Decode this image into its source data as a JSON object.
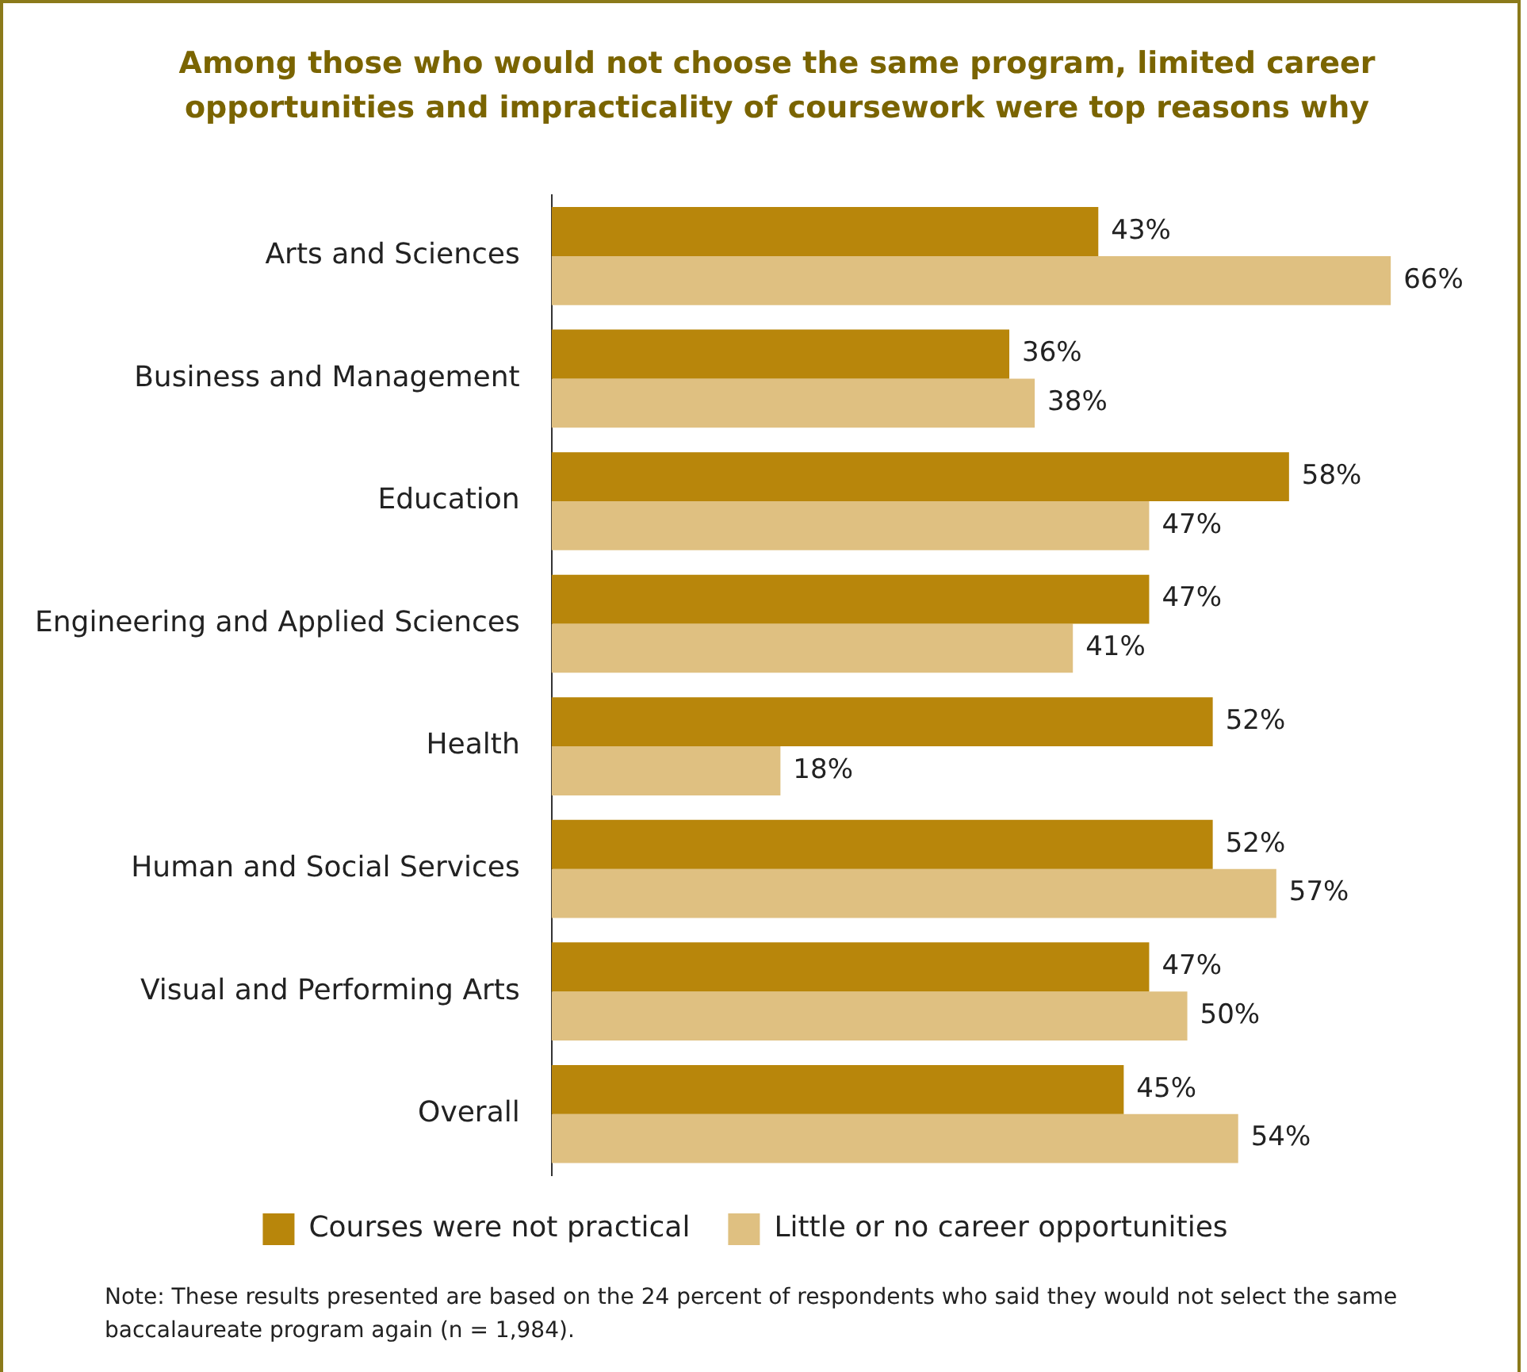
{
  "chart_data": {
    "type": "bar",
    "orientation": "horizontal",
    "title": "Among those who would not choose the same program, limited career opportunities and impracticality of coursework were top reasons why",
    "categories": [
      "Arts and Sciences",
      "Business and Management",
      "Education",
      "Engineering and Applied Sciences",
      "Health",
      "Human and Social Services",
      "Visual and Performing Arts",
      "Overall"
    ],
    "series": [
      {
        "name": "Courses were not practical",
        "color": "#b8860b",
        "values": [
          43,
          36,
          58,
          47,
          52,
          52,
          47,
          45
        ],
        "value_labels": [
          "43%",
          "36%",
          "58%",
          "47%",
          "52%",
          "52%",
          "47%",
          "45%"
        ]
      },
      {
        "name": "Little or no career opportunities",
        "color": "#dfc081",
        "values": [
          66,
          38,
          47,
          41,
          18,
          57,
          50,
          54
        ],
        "value_labels": [
          "66%",
          "38%",
          "47%",
          "41%",
          "18%",
          "57%",
          "50%",
          "54%"
        ]
      }
    ],
    "legend": "bottom",
    "tick_labels": "y",
    "annotations": [
      "Note: These results presented are based on the 24 percent of respondents who said they would not select the same baccalaureate program again (n = 1,984)."
    ]
  }
}
